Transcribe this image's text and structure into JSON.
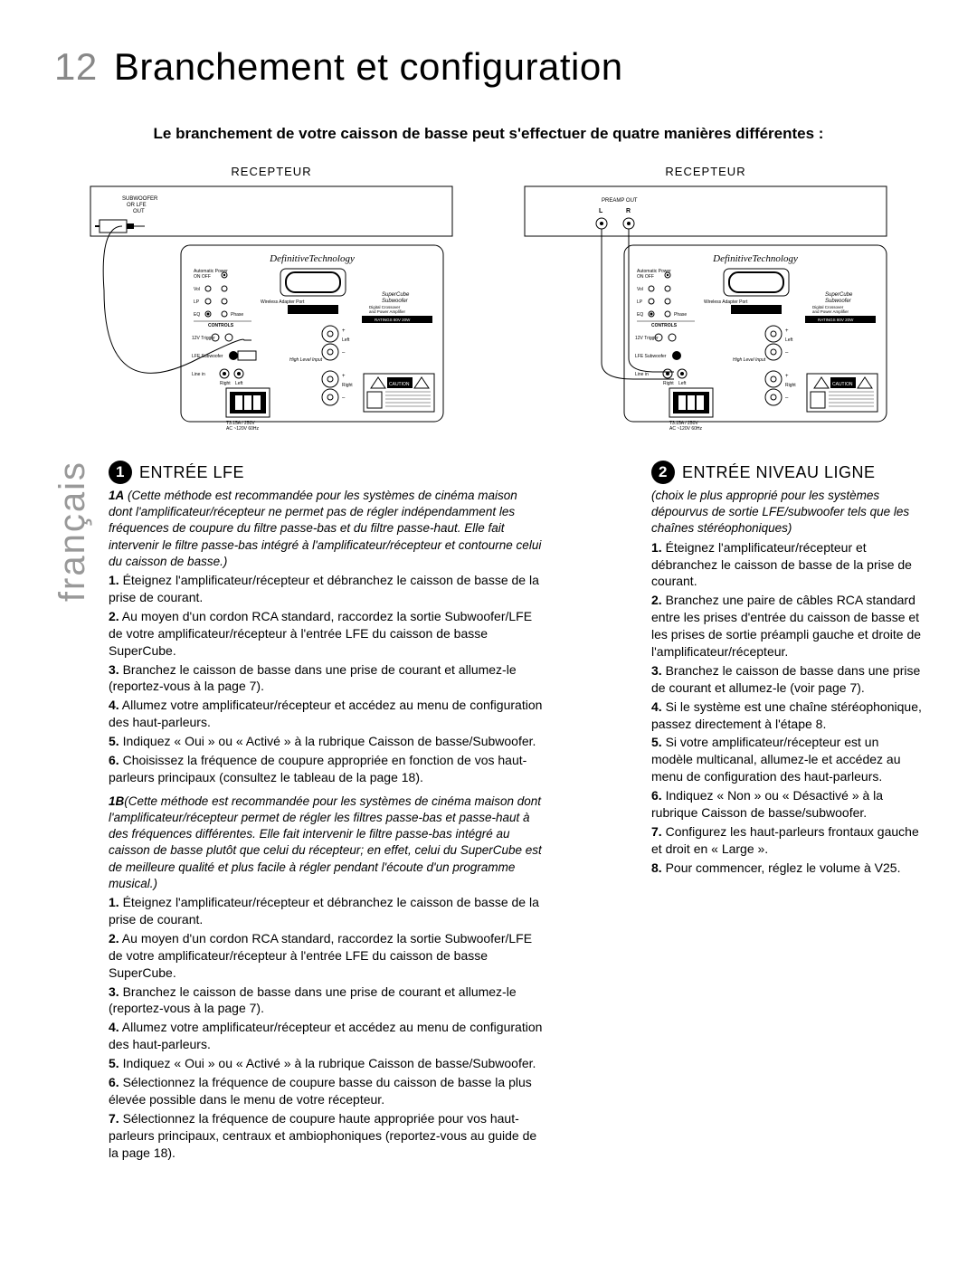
{
  "page": {
    "number": "12",
    "title": "Branchement et configuration",
    "intro": "Le branchement de votre caisson de basse peut s'effectuer de quatre manières différentes :",
    "language_tab": "français",
    "background": "#ffffff",
    "text_color": "#000000",
    "muted_color": "#888888"
  },
  "diagrams": {
    "left": {
      "receiver_label": "RECEPTEUR",
      "jack_label1": "SUBWOOFER",
      "jack_label2": "OR LFE",
      "jack_label3": "OUT",
      "brand": "DefinitiveTechnology"
    },
    "right": {
      "receiver_label": "RECEPTEUR",
      "preamp_label": "PREAMP OUT",
      "l": "L",
      "r": "R",
      "brand": "DefinitiveTechnology"
    },
    "panel_common": {
      "labels": {
        "auto_power": "Automatic Power",
        "onoff1": "ON OFF",
        "vol": "Vol",
        "lp": "LP",
        "eq": "EQ",
        "phase": "Phase",
        "wireless": "Wireless Adapter Port",
        "trigger": "12V Trigger",
        "lfe_sub": "LFE Subwoofer",
        "line_in": "Line in",
        "right_lbl": "Right",
        "left_lbl": "Left",
        "high_level": "High Level Input",
        "plus": "+",
        "minus": "–",
        "left2": "Left",
        "right2": "Right",
        "name1": "SuperCube",
        "name2": "Subwoofer",
        "name3": "Digital Crossover",
        "name4": "and Power Amplifier",
        "rating": "RATINGS 80V 20W",
        "caution": "CAUTION",
        "fuse": "T3.15A / 250V",
        "ac": "AC ~120V 60Hz"
      }
    }
  },
  "section1": {
    "badge": "1",
    "title": "ENTRÉE LFE",
    "note1A_lead": "1A",
    "note1A": " (Cette méthode est recommandée pour les systèmes de cinéma maison dont l'amplificateur/récepteur ne permet pas de régler indépendamment les fréquences de coupure du filtre passe-bas et du filtre passe-haut. Elle fait intervenir le filtre passe-bas intégré à l'amplificateur/récepteur et contourne celui du caisson de basse.)",
    "steps_a": [
      {
        "n": "1.",
        "t": " Éteignez l'amplificateur/récepteur et débranchez le caisson de basse de la prise de courant."
      },
      {
        "n": "2.",
        "t": " Au moyen d'un cordon RCA standard, raccordez la sortie Subwoofer/LFE de votre amplificateur/récepteur à l'entrée LFE du caisson de basse SuperCube."
      },
      {
        "n": "3.",
        "t": " Branchez le caisson de basse dans une prise de courant et allumez-le (reportez-vous à la page 7)."
      },
      {
        "n": "4.",
        "t": " Allumez votre amplificateur/récepteur et accédez au menu de configuration des haut-parleurs."
      },
      {
        "n": "5.",
        "t": " Indiquez « Oui » ou « Activé » à la rubrique Caisson de basse/Subwoofer."
      },
      {
        "n": "6.",
        "t": " Choisissez la fréquence de coupure appropriée en fonction de vos haut-parleurs principaux (consultez le tableau de la page 18)."
      }
    ],
    "note1B_lead": "1B",
    "note1B": "(Cette méthode est recommandée pour les systèmes de cinéma maison dont l'amplificateur/récepteur permet de régler les filtres passe-bas et passe-haut à des fréquences différentes. Elle fait intervenir le filtre passe-bas intégré au caisson de basse plutôt que celui du récepteur; en effet, celui du SuperCube est de meilleure qualité et plus facile à régler pendant l'écoute d'un programme musical.)",
    "steps_b": [
      {
        "n": "1.",
        "t": " Éteignez l'amplificateur/récepteur et débranchez le caisson de basse de la prise de courant."
      },
      {
        "n": "2.",
        "t": " Au moyen d'un cordon RCA standard, raccordez la sortie Subwoofer/LFE de votre amplificateur/récepteur à l'entrée LFE du caisson de basse SuperCube."
      },
      {
        "n": "3.",
        "t": " Branchez le caisson de basse dans une prise de courant et allumez-le (reportez-vous à la page 7)."
      },
      {
        "n": "4.",
        "t": " Allumez votre amplificateur/récepteur et accédez au menu de configuration des haut-parleurs."
      },
      {
        "n": "5.",
        "t": " Indiquez « Oui » ou « Activé » à la rubrique Caisson de basse/Subwoofer."
      },
      {
        "n": "6.",
        "t": " Sélectionnez la fréquence de coupure basse du caisson de basse la plus élevée possible dans le menu de votre récepteur."
      },
      {
        "n": "7.",
        "t": " Sélectionnez la fréquence de coupure haute appropriée pour vos haut-parleurs principaux, centraux et ambiophoniques (reportez-vous au guide de la page 18)."
      }
    ]
  },
  "section2": {
    "badge": "2",
    "title": "ENTRÉE NIVEAU LIGNE",
    "note": "(choix le plus approprié pour les systèmes dépourvus de sortie LFE/subwoofer tels que les chaînes stéréophoniques)",
    "steps": [
      {
        "n": "1.",
        "t": " Éteignez l'amplificateur/récepteur et débranchez le caisson de basse de la prise de courant."
      },
      {
        "n": "2.",
        "t": " Branchez une paire de câbles RCA standard entre les prises d'entrée du caisson de basse et les prises de sortie préampli gauche et droite de l'amplificateur/récepteur."
      },
      {
        "n": "3.",
        "t": " Branchez le caisson de basse dans une prise de courant et allumez-le (voir page 7)."
      },
      {
        "n": "4.",
        "t": " Si le système est une chaîne stéréophonique, passez directement à l'étape 8."
      },
      {
        "n": "5.",
        "t": " Si votre amplificateur/récepteur est un modèle multicanal, allumez-le et accédez au menu de configuration des haut-parleurs."
      },
      {
        "n": "6.",
        "t": " Indiquez « Non » ou « Désactivé » à la rubrique Caisson de basse/subwoofer."
      },
      {
        "n": "7.",
        "t": " Configurez les haut-parleurs frontaux gauche et droit en « Large »."
      },
      {
        "n": "8.",
        "t": " Pour commencer, réglez le volume à V25."
      }
    ]
  }
}
